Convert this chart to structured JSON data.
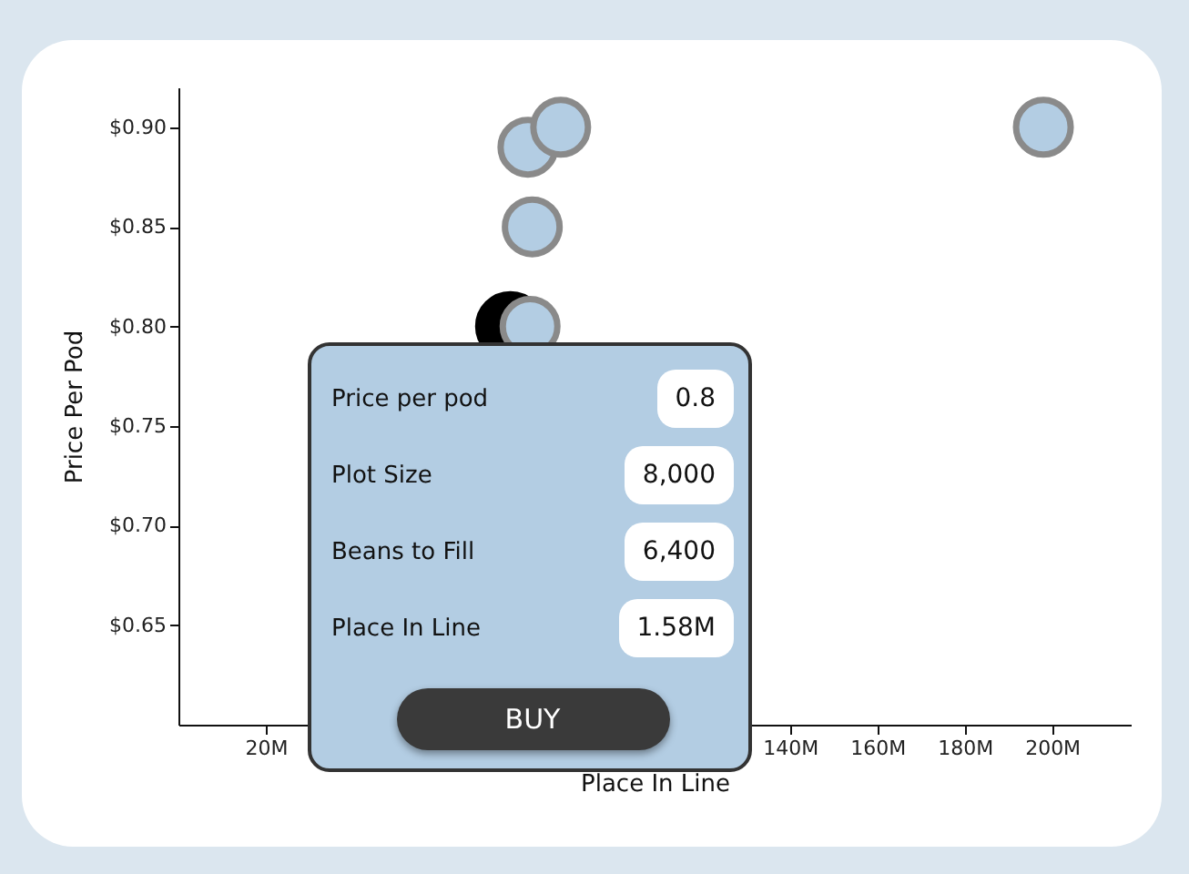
{
  "chart_data": {
    "type": "scatter",
    "xlabel": "Place In Line",
    "ylabel": "Price Per Pod",
    "xlim": [
      0,
      218
    ],
    "ylim": [
      0.6,
      0.92
    ],
    "xticks": [
      {
        "value": 20,
        "label": "20M"
      },
      {
        "value": 140,
        "label": "140M"
      },
      {
        "value": 160,
        "label": "160M"
      },
      {
        "value": 180,
        "label": "180M"
      },
      {
        "value": 200,
        "label": "200M"
      }
    ],
    "yticks": [
      {
        "value": 0.65,
        "label": "$0.65"
      },
      {
        "value": 0.7,
        "label": "$0.70"
      },
      {
        "value": 0.75,
        "label": "$0.75"
      },
      {
        "value": 0.8,
        "label": "$0.80"
      },
      {
        "value": 0.85,
        "label": "$0.85"
      },
      {
        "value": 0.9,
        "label": "$0.90"
      }
    ],
    "grid": false,
    "legend": false,
    "marker": "circle",
    "series": [
      {
        "color": "#000000",
        "x": [
          76
        ],
        "values": [
          0.8
        ]
      },
      {
        "color": "#b3cde3",
        "x": [
          80,
          87.5,
          81,
          80.5,
          198
        ],
        "values": [
          0.89,
          0.9,
          0.85,
          0.8,
          0.9
        ]
      }
    ],
    "annotations": [
      "Price per pod",
      "0.8",
      "Plot Size",
      "8,000",
      "Beans to Fill",
      "6,400",
      "Place In Line",
      "1.58M",
      "BUY"
    ]
  }
}
